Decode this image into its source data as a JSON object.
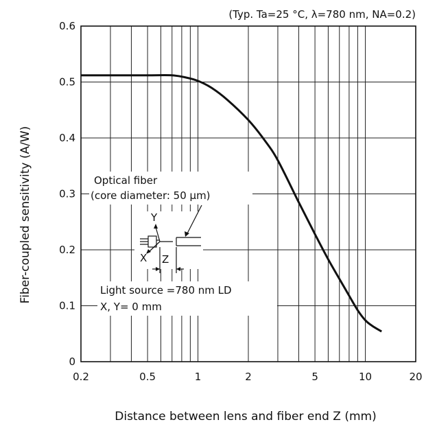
{
  "chart_data": {
    "type": "line",
    "title": "",
    "conditions": "(Typ. Ta=25 °C, λ=780 nm,  NA=0.2)",
    "xlabel": "Distance between lens and fiber end Z (mm)",
    "ylabel": "Fiber-coupled sensitivity (A/W)",
    "xscale": "log",
    "xlim": [
      0.2,
      20
    ],
    "ylim": [
      0,
      0.6
    ],
    "grid": true,
    "x_tick_labels": [
      "0.2",
      "0.5",
      "1",
      "2",
      "5",
      "10",
      "20"
    ],
    "y_tick_labels": [
      "0",
      "0.1",
      "0.2",
      "0.3",
      "0.4",
      "0.5",
      "0.6"
    ],
    "series": [
      {
        "x": [
          0.2,
          0.3,
          0.5,
          0.7,
          0.85,
          1.0,
          1.2,
          1.5,
          2.0,
          2.5,
          3.0,
          4.0,
          5.0,
          6.0,
          7.0,
          8.0,
          9.0,
          10.0,
          11.0,
          12.5
        ],
        "y": [
          0.512,
          0.512,
          0.512,
          0.512,
          0.508,
          0.502,
          0.49,
          0.468,
          0.432,
          0.396,
          0.36,
          0.285,
          0.228,
          0.183,
          0.148,
          0.118,
          0.092,
          0.074,
          0.064,
          0.054
        ]
      }
    ],
    "annotations": {
      "fiber_label_1": "Optical fiber",
      "fiber_label_2": "(core diameter: 50 μm)",
      "axis_y": "Y",
      "axis_x": "X",
      "axis_z": "Z",
      "source_label_1": "Light source =780 nm LD",
      "source_label_2": "X, Y= 0 mm"
    }
  }
}
